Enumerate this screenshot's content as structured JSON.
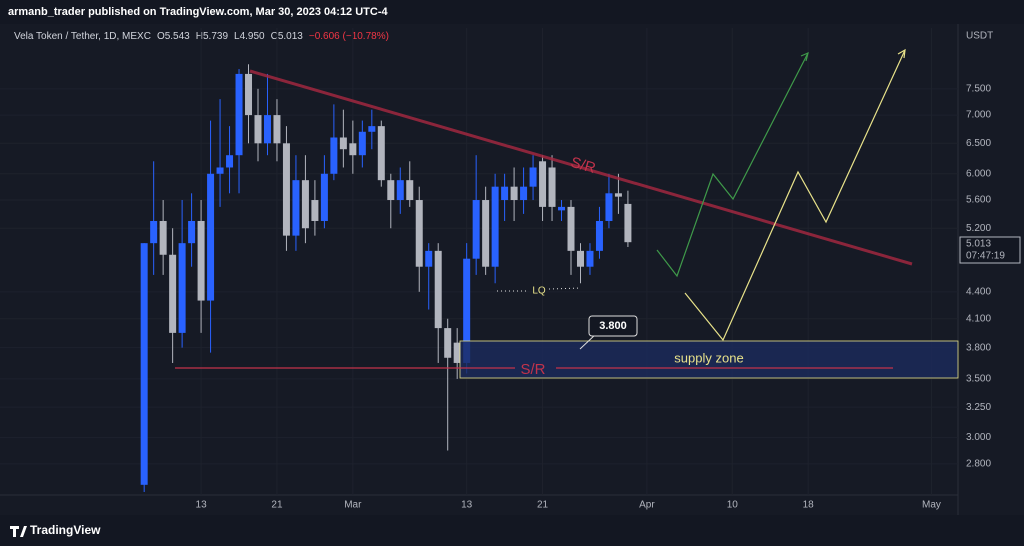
{
  "header": {
    "publisher": "armanb_trader published on TradingView.com, Mar 30, 2023 04:12 UTC-4",
    "symbol": "Vela Token / Tether, 1D, MEXC",
    "stats": [
      {
        "label": "O",
        "value": "5.543"
      },
      {
        "label": "H",
        "value": "5.739"
      },
      {
        "label": "L",
        "value": "4.950"
      },
      {
        "label": "C",
        "value": "5.013"
      }
    ],
    "change": "−0.606 (−10.78%)"
  },
  "chart_data": {
    "type": "candlestick",
    "y_unit": "USDT",
    "log_scale": true,
    "up_color": "#2962ff",
    "down_color": "#b2b5be",
    "x": [
      38,
      39,
      40,
      41,
      42,
      43,
      44,
      45,
      46,
      47,
      48,
      49,
      50,
      51,
      52,
      53,
      54,
      55,
      56,
      57,
      58,
      59,
      60,
      61,
      62,
      63,
      64,
      65,
      66,
      67,
      68,
      69,
      70,
      71,
      72,
      73,
      74,
      75,
      76,
      77,
      78,
      79,
      80,
      81,
      82,
      83,
      84,
      85,
      86,
      87,
      88,
      89
    ],
    "open": [
      2.65,
      5.0,
      5.3,
      4.85,
      3.95,
      5.0,
      5.3,
      4.3,
      6.0,
      6.1,
      6.3,
      7.8,
      7.0,
      6.5,
      7.0,
      6.5,
      5.1,
      5.9,
      5.6,
      5.3,
      6.0,
      6.6,
      6.5,
      6.3,
      6.7,
      6.8,
      5.9,
      5.6,
      5.9,
      5.6,
      4.7,
      4.9,
      4.0,
      3.85,
      3.65,
      4.8,
      5.6,
      4.7,
      5.6,
      5.8,
      5.6,
      5.8,
      6.2,
      6.1,
      5.45,
      5.5,
      4.9,
      4.7,
      4.9,
      5.3,
      5.7,
      5.543
    ],
    "high": [
      5.0,
      6.2,
      5.6,
      5.2,
      5.6,
      5.7,
      5.6,
      6.9,
      7.3,
      6.8,
      7.9,
      8.0,
      7.5,
      7.8,
      7.3,
      6.8,
      6.3,
      6.3,
      5.9,
      6.3,
      7.2,
      7.1,
      6.9,
      6.9,
      7.1,
      6.9,
      6.0,
      6.1,
      6.2,
      5.8,
      5.0,
      5.0,
      4.1,
      4.0,
      5.0,
      6.3,
      5.8,
      6.0,
      6.0,
      6.1,
      6.1,
      6.3,
      6.3,
      6.3,
      5.6,
      5.6,
      5.0,
      5.0,
      5.5,
      6.0,
      6.0,
      5.739
    ],
    "low": [
      2.6,
      4.6,
      4.6,
      3.65,
      3.8,
      4.7,
      3.95,
      3.75,
      5.5,
      5.7,
      5.7,
      6.5,
      6.2,
      6.3,
      6.2,
      4.9,
      4.9,
      5.0,
      5.1,
      5.2,
      5.9,
      6.1,
      6.0,
      6.1,
      6.4,
      5.8,
      5.2,
      5.4,
      5.5,
      4.4,
      4.2,
      3.65,
      2.9,
      3.5,
      3.55,
      4.6,
      4.6,
      4.5,
      5.3,
      5.3,
      5.4,
      5.6,
      5.3,
      5.3,
      5.3,
      4.6,
      4.5,
      4.6,
      4.8,
      5.2,
      5.4,
      4.95
    ],
    "close": [
      5.0,
      5.3,
      4.85,
      3.95,
      5.0,
      5.3,
      4.3,
      6.0,
      6.1,
      6.3,
      7.8,
      7.0,
      6.5,
      7.0,
      6.5,
      5.1,
      5.9,
      5.2,
      5.3,
      6.0,
      6.6,
      6.4,
      6.3,
      6.7,
      6.8,
      5.9,
      5.6,
      5.9,
      5.6,
      4.7,
      4.9,
      4.0,
      3.7,
      3.65,
      4.8,
      5.6,
      4.7,
      5.8,
      5.8,
      5.6,
      5.8,
      6.1,
      5.5,
      5.5,
      5.5,
      4.9,
      4.7,
      4.9,
      5.3,
      5.7,
      5.65,
      5.013
    ],
    "xlim": [
      22.8,
      123.8
    ],
    "xticks": [
      {
        "value": 44,
        "label": "13"
      },
      {
        "value": 52,
        "label": "21"
      },
      {
        "value": 60,
        "label": "Mar"
      },
      {
        "value": 72,
        "label": "13"
      },
      {
        "value": 80,
        "label": "21"
      },
      {
        "value": 91,
        "label": "Apr"
      },
      {
        "value": 100,
        "label": "10"
      },
      {
        "value": 108,
        "label": "18"
      },
      {
        "value": 121,
        "label": "May"
      }
    ],
    "ylim": [
      2.58,
      8.8
    ],
    "yticks": [
      {
        "value": 2.8,
        "label": "2.800"
      },
      {
        "value": 3,
        "label": "3.000"
      },
      {
        "value": 3.25,
        "label": "3.250"
      },
      {
        "value": 3.5,
        "label": "3.500"
      },
      {
        "value": 3.8,
        "label": "3.800"
      },
      {
        "value": 4.1,
        "label": "4.100"
      },
      {
        "value": 4.4,
        "label": "4.400"
      },
      {
        "value": 5.2,
        "label": "5.200"
      },
      {
        "value": 5.6,
        "label": "5.600"
      },
      {
        "value": 6,
        "label": "6.000"
      },
      {
        "value": 6.5,
        "label": "6.500"
      },
      {
        "value": 7,
        "label": "7.000"
      },
      {
        "value": 7.5,
        "label": "7.500"
      }
    ],
    "last_price": 5.013,
    "countdown": "07:47:19",
    "annotations": {
      "trend_label": "S/R",
      "support_label": "S/R",
      "lq": "LQ",
      "zone": "supply zone",
      "price_note": {
        "value": 3.8,
        "label": "3.800"
      }
    }
  },
  "footer": {
    "brand": "TradingView"
  }
}
